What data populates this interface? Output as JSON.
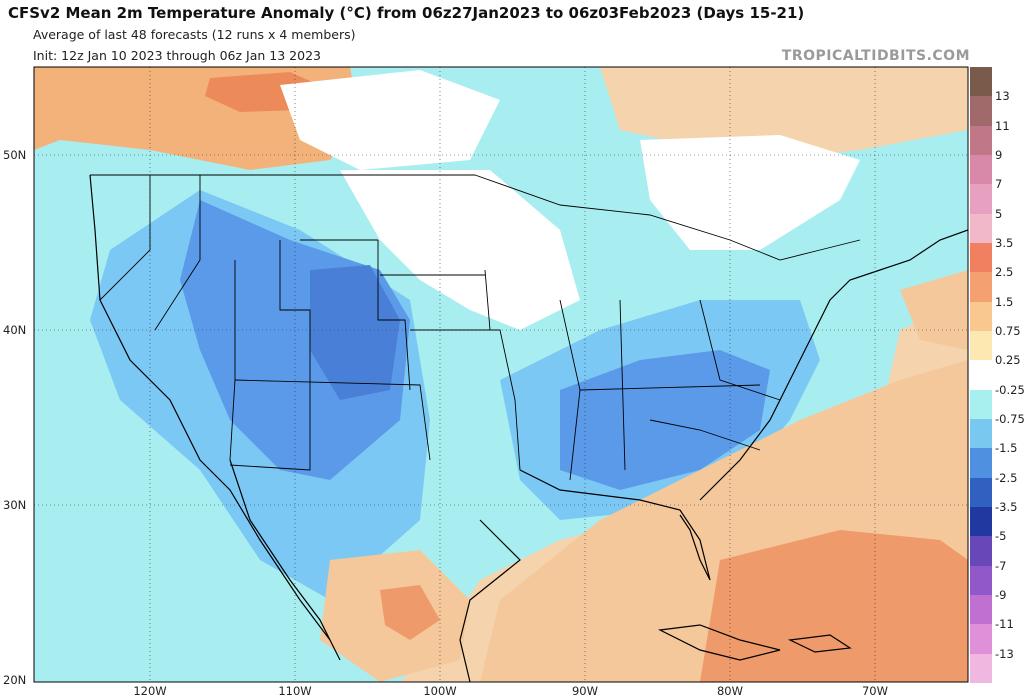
{
  "header": {
    "title": "CFSv2 Mean 2m Temperature Anomaly (°C) from 06z27Jan2023 to 06z03Feb2023 (Days 15-21)",
    "subtitle1": "Average of last 48 forecasts (12 runs x 4 members)",
    "subtitle2": "Init: 12z Jan 10 2023 through 06z Jan 13 2023",
    "credit": "TROPICALTIDBITS.COM"
  },
  "axes": {
    "lat_labels": [
      "50N",
      "40N",
      "30N",
      "20N"
    ],
    "lon_labels": [
      "120W",
      "110W",
      "100W",
      "90W",
      "80W",
      "70W"
    ]
  },
  "colorbar": {
    "labels": [
      "13",
      "11",
      "9",
      "7",
      "5",
      "3.5",
      "2.5",
      "1.5",
      "0.75",
      "0.25",
      "-0.25",
      "-0.75",
      "-1.5",
      "-2.5",
      "-3.5",
      "-5",
      "-7",
      "-9",
      "-11",
      "-13"
    ],
    "colors": [
      "#7a5a4a",
      "#a06a6a",
      "#c07888",
      "#d888a8",
      "#e8a0c0",
      "#f0b8c8",
      "#f08060",
      "#f4a070",
      "#f8c890",
      "#fce8b0",
      "#ffffff",
      "#a8f0f0",
      "#78c8f0",
      "#5090e0",
      "#3060c0",
      "#2038a0",
      "#6848b8",
      "#9058c8",
      "#c070d0",
      "#e090d8",
      "#f0b8e0"
    ]
  },
  "colors": {
    "ocean_warm": "#f4c89a",
    "warm_strong": "#ef9a6a",
    "cold_light": "#a8eef0",
    "cold_mid": "#7cc8f4",
    "cold_strong": "#5a9ae8",
    "cold_deep": "#4a7fd8",
    "neutral": "#ffffff"
  }
}
